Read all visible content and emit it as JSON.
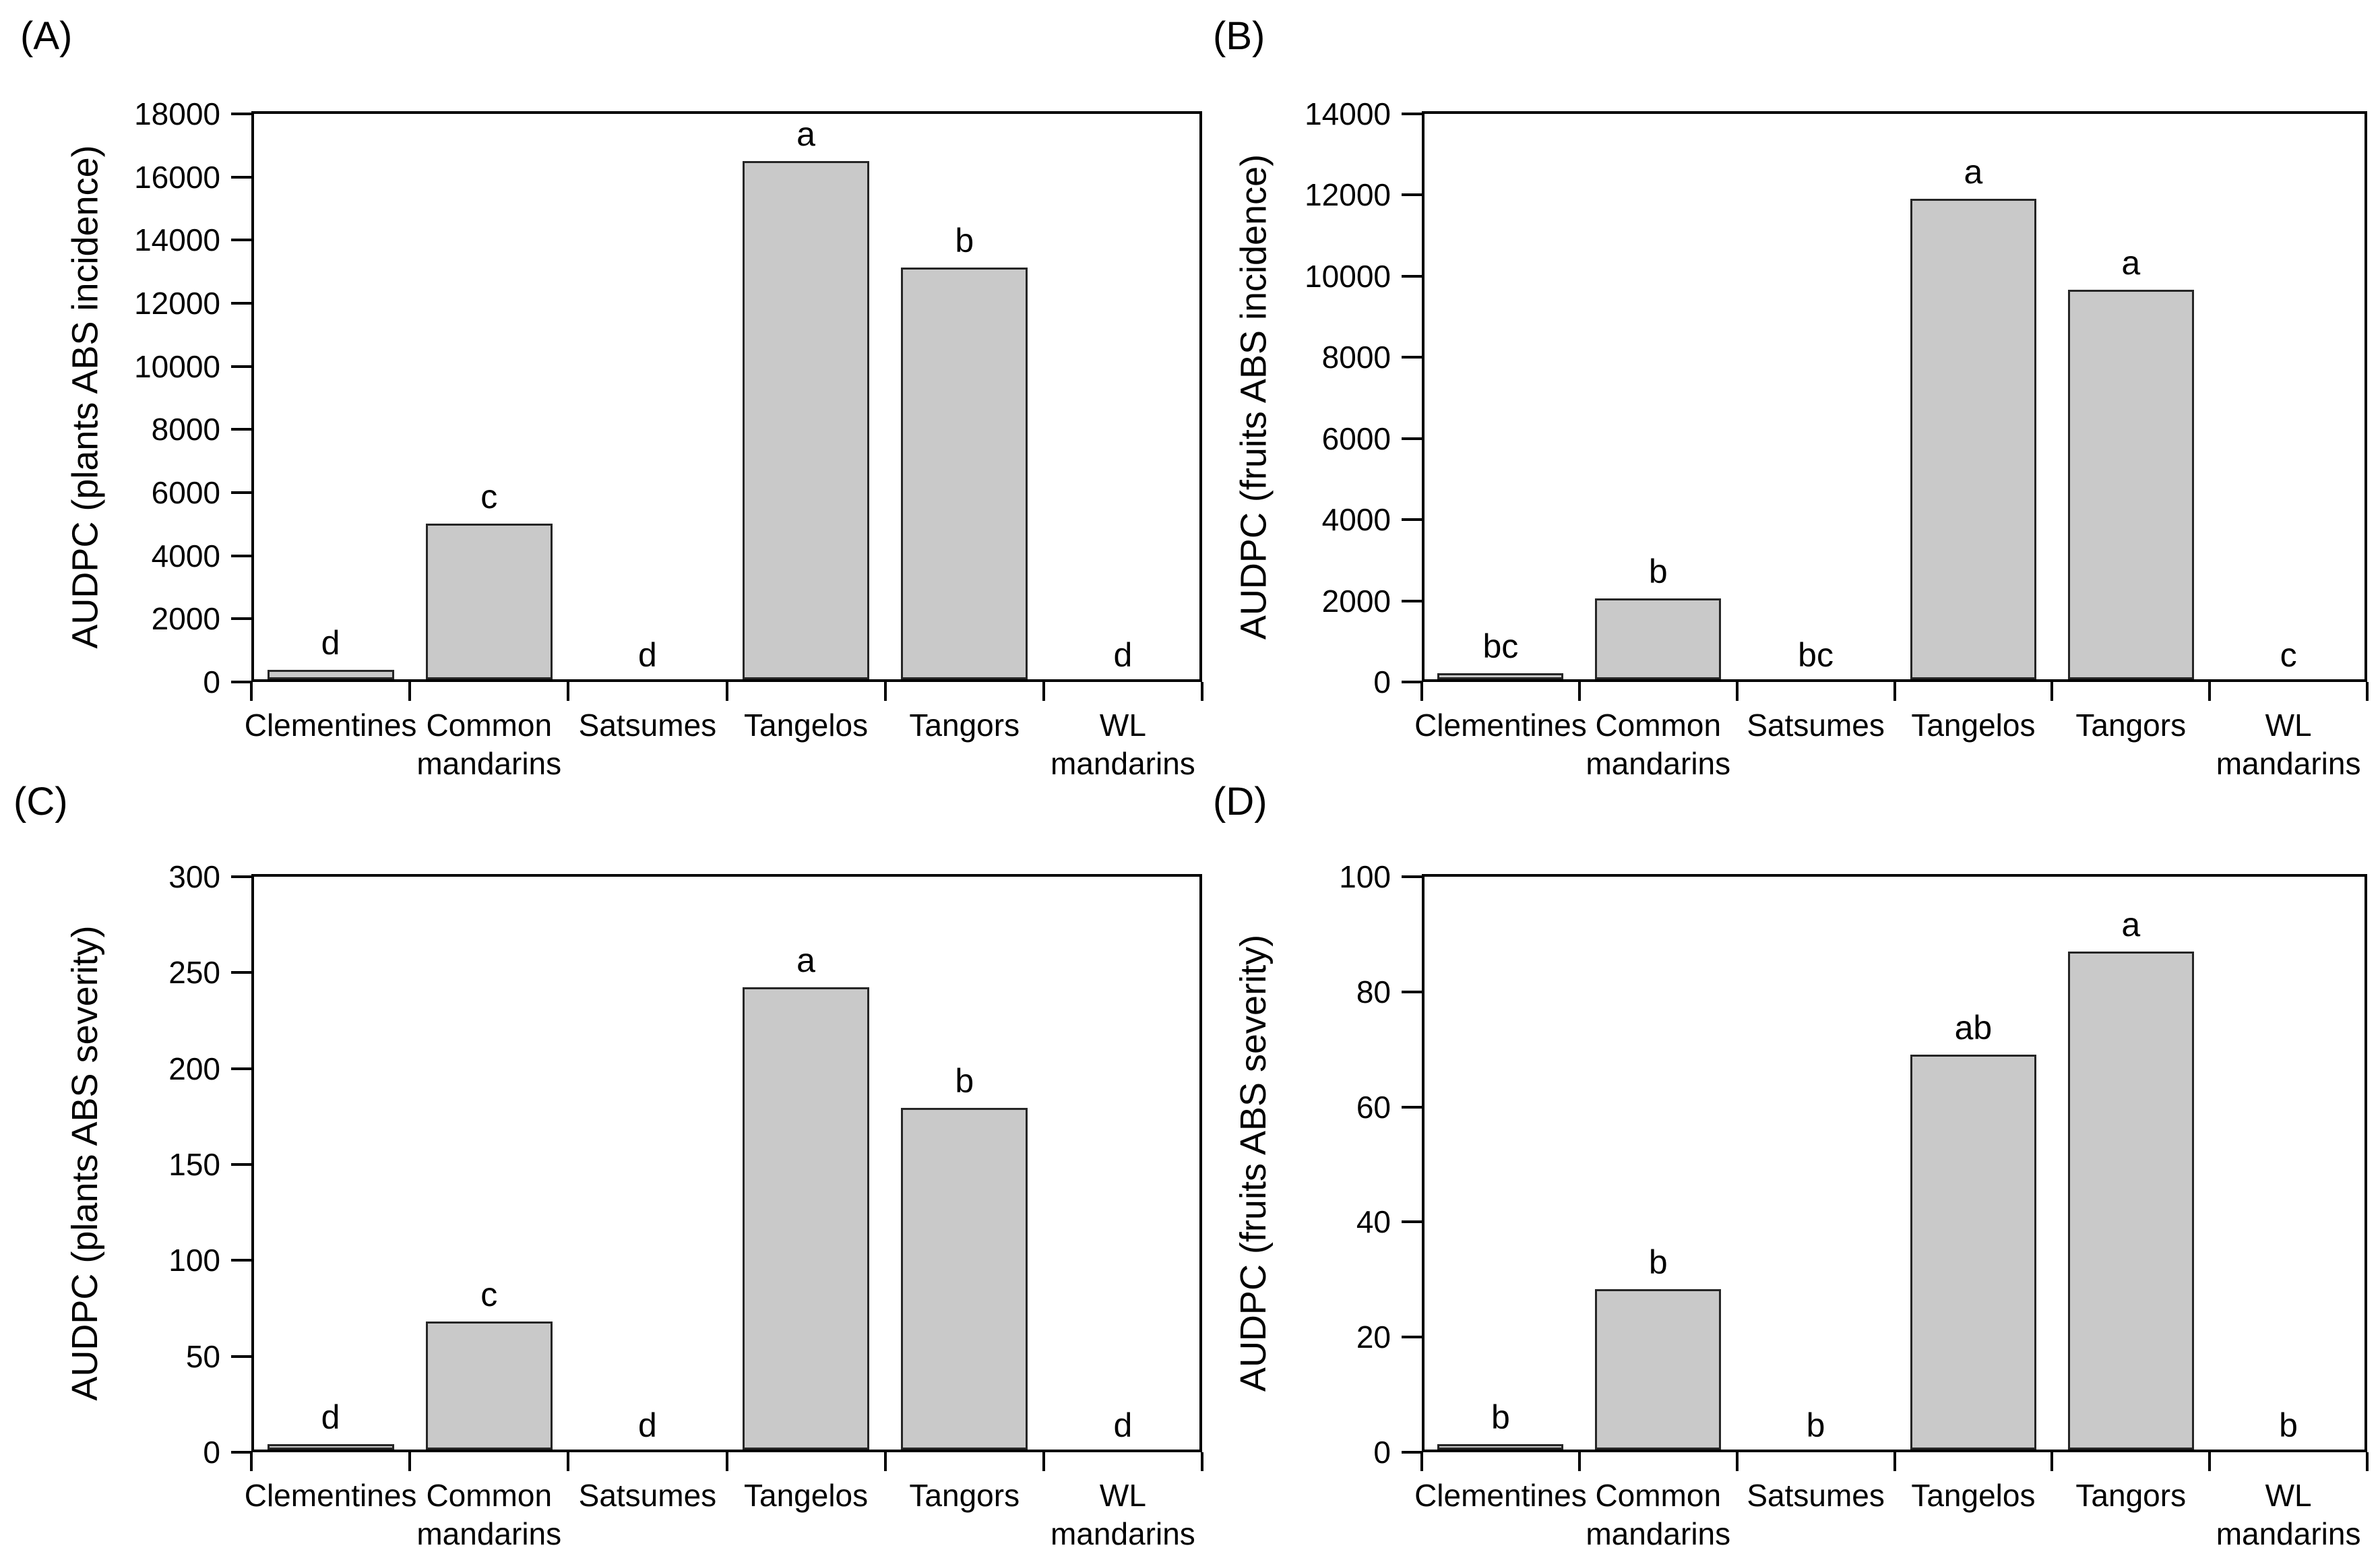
{
  "figure": {
    "background": "#ffffff",
    "bar_fill": "#c9c9c9",
    "bar_border": "#262626",
    "axis_color": "#000000"
  },
  "chart_data": [
    {
      "type": "bar",
      "panel_label": "(A)",
      "ylabel": "AUDPC (plants ABS incidence)",
      "categories": [
        "Clementines",
        "Common\nmandarins",
        "Satsumes",
        "Tangelos",
        "Tangors",
        "WL\nmandarins"
      ],
      "values": [
        300,
        4950,
        0,
        16500,
        13100,
        0
      ],
      "sig_letters": [
        "d",
        "c",
        "d",
        "a",
        "b",
        "d"
      ],
      "ylim": [
        0,
        18000
      ],
      "ytick_step": 2000,
      "grid": "off",
      "legend": "none"
    },
    {
      "type": "bar",
      "panel_label": "(B)",
      "ylabel": "AUDPC (fruits ABS incidence)",
      "categories": [
        "Clementines",
        "Common\nmandarins",
        "Satsumes",
        "Tangelos",
        "Tangors",
        "WL\nmandarins"
      ],
      "values": [
        150,
        2000,
        0,
        11900,
        9650,
        0
      ],
      "sig_letters": [
        "bc",
        "b",
        "bc",
        "a",
        "a",
        "c"
      ],
      "ylim": [
        0,
        14000
      ],
      "ytick_step": 2000,
      "grid": "off",
      "legend": "none"
    },
    {
      "type": "bar",
      "panel_label": "(C)",
      "ylabel": "AUDPC (plants ABS severity)",
      "categories": [
        "Clementines",
        "Common\nmandarins",
        "Satsumes",
        "Tangelos",
        "Tangors",
        "WL\nmandarins"
      ],
      "values": [
        3,
        67,
        0,
        242,
        179,
        0
      ],
      "sig_letters": [
        "d",
        "c",
        "d",
        "a",
        "b",
        "d"
      ],
      "ylim": [
        0,
        300
      ],
      "ytick_step": 50,
      "grid": "off",
      "legend": "none"
    },
    {
      "type": "bar",
      "panel_label": "(D)",
      "ylabel": "AUDPC (fruits ABS severity)",
      "categories": [
        "Clementines",
        "Common\nmandarins",
        "Satsumes",
        "Tangelos",
        "Tangors",
        "WL\nmandarins"
      ],
      "values": [
        1,
        28,
        0,
        69,
        87,
        0
      ],
      "sig_letters": [
        "b",
        "b",
        "b",
        "ab",
        "a",
        "b"
      ],
      "ylim": [
        0,
        100
      ],
      "ytick_step": 20,
      "grid": "off",
      "legend": "none"
    }
  ]
}
